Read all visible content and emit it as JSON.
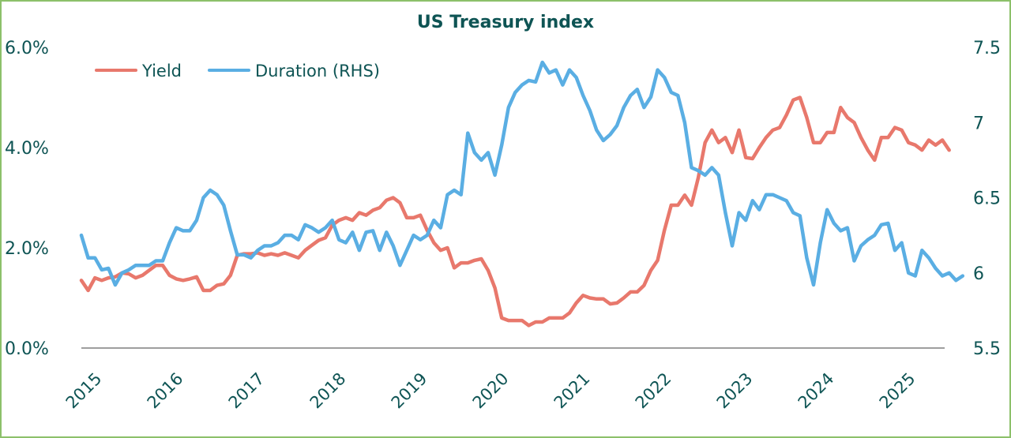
{
  "chart_data": {
    "type": "line",
    "title": "US Treasury index",
    "xlabel": "",
    "ylabel": "",
    "x_ticks": [
      "2015",
      "2016",
      "2017",
      "2018",
      "2019",
      "2020",
      "2021",
      "2022",
      "2023",
      "2024",
      "2025"
    ],
    "x_start": "2015-01",
    "x_frequency": "monthly",
    "y_left": {
      "ticks": [
        "0.0%",
        "2.0%",
        "4.0%",
        "6.0%"
      ],
      "range": [
        0,
        6
      ]
    },
    "y_right": {
      "ticks": [
        "5.5",
        "6",
        "6.5",
        "7",
        "7.5"
      ],
      "range": [
        5.5,
        7.5
      ]
    },
    "legend_position": "top-left",
    "grid": false,
    "series": [
      {
        "name": "Yield",
        "axis": "left",
        "color": "#e8786c",
        "values": [
          1.35,
          1.15,
          1.4,
          1.35,
          1.4,
          1.42,
          1.5,
          1.48,
          1.4,
          1.45,
          1.55,
          1.65,
          1.65,
          1.45,
          1.38,
          1.35,
          1.38,
          1.42,
          1.15,
          1.15,
          1.25,
          1.28,
          1.45,
          1.85,
          1.88,
          1.88,
          1.9,
          1.85,
          1.88,
          1.85,
          1.9,
          1.85,
          1.8,
          1.95,
          2.05,
          2.15,
          2.2,
          2.45,
          2.55,
          2.6,
          2.55,
          2.7,
          2.65,
          2.75,
          2.8,
          2.95,
          3.0,
          2.9,
          2.6,
          2.6,
          2.65,
          2.35,
          2.1,
          1.95,
          2.0,
          1.6,
          1.7,
          1.7,
          1.75,
          1.78,
          1.55,
          1.2,
          0.6,
          0.55,
          0.55,
          0.55,
          0.45,
          0.52,
          0.52,
          0.6,
          0.6,
          0.6,
          0.7,
          0.9,
          1.05,
          1.0,
          0.98,
          0.98,
          0.88,
          0.9,
          1.0,
          1.12,
          1.12,
          1.25,
          1.55,
          1.75,
          2.35,
          2.85,
          2.85,
          3.05,
          2.85,
          3.4,
          4.1,
          4.35,
          4.1,
          4.2,
          3.9,
          4.35,
          3.8,
          3.78,
          4.0,
          4.2,
          4.35,
          4.4,
          4.65,
          4.95,
          5.0,
          4.6,
          4.1,
          4.1,
          4.3,
          4.3,
          4.8,
          4.6,
          4.5,
          4.2,
          3.95,
          3.75,
          4.2,
          4.2,
          4.4,
          4.35,
          4.1,
          4.05,
          3.95,
          4.15,
          4.05,
          4.15,
          3.95
        ]
      },
      {
        "name": "Duration (RHS)",
        "axis": "right",
        "color": "#5aaee3",
        "values": [
          6.25,
          6.1,
          6.1,
          6.02,
          6.03,
          5.92,
          6.0,
          6.02,
          6.05,
          6.05,
          6.05,
          6.08,
          6.08,
          6.2,
          6.3,
          6.28,
          6.28,
          6.35,
          6.5,
          6.55,
          6.52,
          6.45,
          6.28,
          6.12,
          6.12,
          6.1,
          6.15,
          6.18,
          6.18,
          6.2,
          6.25,
          6.25,
          6.22,
          6.32,
          6.3,
          6.27,
          6.3,
          6.35,
          6.22,
          6.2,
          6.27,
          6.15,
          6.27,
          6.28,
          6.15,
          6.27,
          6.18,
          6.05,
          6.15,
          6.25,
          6.22,
          6.25,
          6.35,
          6.3,
          6.52,
          6.55,
          6.52,
          6.93,
          6.8,
          6.75,
          6.8,
          6.65,
          6.85,
          7.1,
          7.2,
          7.25,
          7.28,
          7.27,
          7.4,
          7.33,
          7.35,
          7.25,
          7.35,
          7.3,
          7.18,
          7.08,
          6.95,
          6.88,
          6.92,
          6.98,
          7.1,
          7.18,
          7.22,
          7.1,
          7.17,
          7.35,
          7.3,
          7.2,
          7.18,
          7.0,
          6.7,
          6.68,
          6.65,
          6.7,
          6.65,
          6.4,
          6.18,
          6.4,
          6.35,
          6.48,
          6.42,
          6.52,
          6.52,
          6.5,
          6.48,
          6.4,
          6.38,
          6.1,
          5.92,
          6.2,
          6.42,
          6.33,
          6.28,
          6.3,
          6.08,
          6.18,
          6.22,
          6.25,
          6.32,
          6.33,
          6.15,
          6.2,
          6.0,
          5.98,
          6.15,
          6.1,
          6.03,
          5.98,
          6.0,
          5.95,
          5.98
        ]
      }
    ]
  }
}
